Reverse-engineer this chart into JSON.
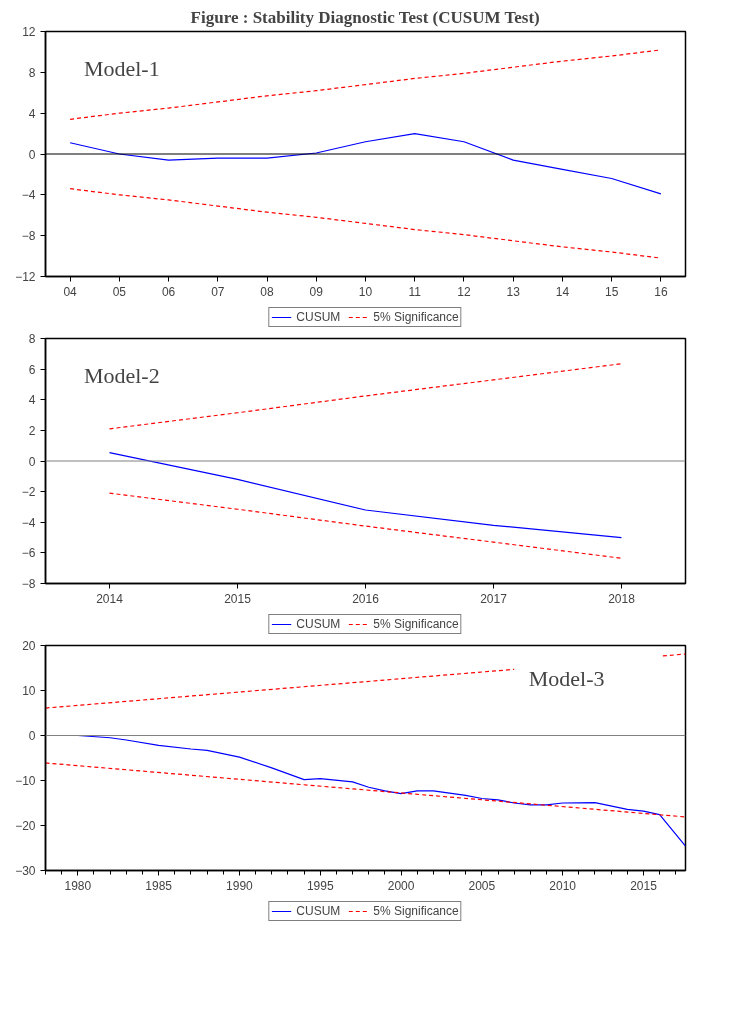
{
  "chart_data": [
    {
      "type": "line",
      "title": "Figure : Stability Diagnostic Test (CUSUM Test)",
      "categories": [
        "04",
        "05",
        "06",
        "07",
        "08",
        "09",
        "10",
        "11",
        "12",
        "13",
        "14",
        "15",
        "16"
      ],
      "series": [
        {
          "name": "CUSUM",
          "color": "#0000ff",
          "line_style": "solid",
          "values": [
            1.1,
            0.0,
            -0.6,
            -0.4,
            -0.4,
            0.1,
            1.2,
            2.0,
            1.2,
            -0.6,
            -1.5,
            -2.4,
            -3.9
          ]
        },
        {
          "name": "5% Significance",
          "color": "#ff0000",
          "line_style": "dashed",
          "values": [
            3.4,
            4.0,
            4.5,
            5.1,
            5.7,
            6.2,
            6.8,
            7.4,
            7.9,
            8.5,
            9.1,
            9.6,
            10.2
          ]
        },
        {
          "color": "#ff0000",
          "line_style": "dashed",
          "values": [
            -3.4,
            -4.0,
            -4.5,
            -5.1,
            -5.7,
            -6.2,
            -6.8,
            -7.4,
            -7.9,
            -8.5,
            -9.1,
            -9.6,
            -10.2
          ]
        }
      ],
      "ylim": [
        -12,
        12
      ],
      "yticks": [
        -12,
        -8,
        -4,
        0,
        4,
        8,
        12
      ],
      "ref_lines": [
        {
          "axis": "y",
          "value": 0,
          "color": "#000000"
        }
      ],
      "annotations": [
        "Model-1"
      ],
      "legend": "bottom",
      "grid": false
    },
    {
      "type": "line",
      "categories": [
        "2014",
        "2015",
        "2016",
        "2017",
        "2018"
      ],
      "series": [
        {
          "name": "CUSUM",
          "color": "#0000ff",
          "line_style": "solid",
          "values": [
            0.55,
            -1.2,
            -3.2,
            -4.2,
            -5.0
          ]
        },
        {
          "name": "5% Significance",
          "color": "#ff0000",
          "line_style": "dashed",
          "values": [
            2.1,
            3.15,
            4.25,
            5.3,
            6.35
          ]
        },
        {
          "color": "#ff0000",
          "line_style": "dashed",
          "values": [
            -2.1,
            -3.15,
            -4.25,
            -5.3,
            -6.35
          ]
        }
      ],
      "ylim": [
        -8,
        8
      ],
      "yticks": [
        -8,
        -6,
        -4,
        -2,
        0,
        2,
        4,
        6,
        8
      ],
      "ref_lines": [
        {
          "axis": "y",
          "value": 0,
          "color": "#808080"
        }
      ],
      "annotations": [
        "Model-2"
      ],
      "legend": "bottom",
      "grid": false
    },
    {
      "type": "line",
      "series": [
        {
          "name": "CUSUM",
          "color": "#0000ff",
          "line_style": "solid",
          "x": [
            1978,
            1980,
            1982,
            1983,
            1985,
            1987,
            1988,
            1990,
            1992,
            1994,
            1995,
            1997,
            1998,
            1999,
            2000,
            2001,
            2002,
            2004,
            2005,
            2006,
            2007,
            2008,
            2009,
            2010,
            2012,
            2014,
            2015,
            2016,
            2017.6
          ],
          "values": [
            0,
            0,
            -0.5,
            -1.0,
            -2.2,
            -3.0,
            -3.3,
            -4.8,
            -7.2,
            -9.8,
            -9.6,
            -10.3,
            -11.5,
            -12.3,
            -12.9,
            -12.3,
            -12.3,
            -13.3,
            -14.0,
            -14.3,
            -15.0,
            -15.4,
            -15.4,
            -15.0,
            -14.9,
            -16.4,
            -16.8,
            -17.6,
            -24.6
          ]
        },
        {
          "name": "5% Significance",
          "color": "#ff0000",
          "line_style": "dashed",
          "x": [
            1978,
            2007,
            2011,
            2016.2,
            2017.6
          ],
          "values": [
            6.1,
            14.7,
            null,
            17.7,
            18.1
          ]
        },
        {
          "color": "#ff0000",
          "line_style": "dashed",
          "x": [
            1978,
            2017.6
          ],
          "values": [
            -6.1,
            -18.1
          ]
        }
      ],
      "xlim": [
        1978,
        2017.6
      ],
      "xticks": [
        1980,
        1985,
        1990,
        1995,
        2000,
        2005,
        2010,
        2015
      ],
      "ylim": [
        -30,
        20
      ],
      "yticks": [
        -30,
        -20,
        -10,
        0,
        10,
        20
      ],
      "ref_lines": [
        {
          "axis": "y",
          "value": 0,
          "color": "#808080"
        }
      ],
      "annotations": [
        "Model-3"
      ],
      "legend": "bottom",
      "grid": false
    }
  ]
}
